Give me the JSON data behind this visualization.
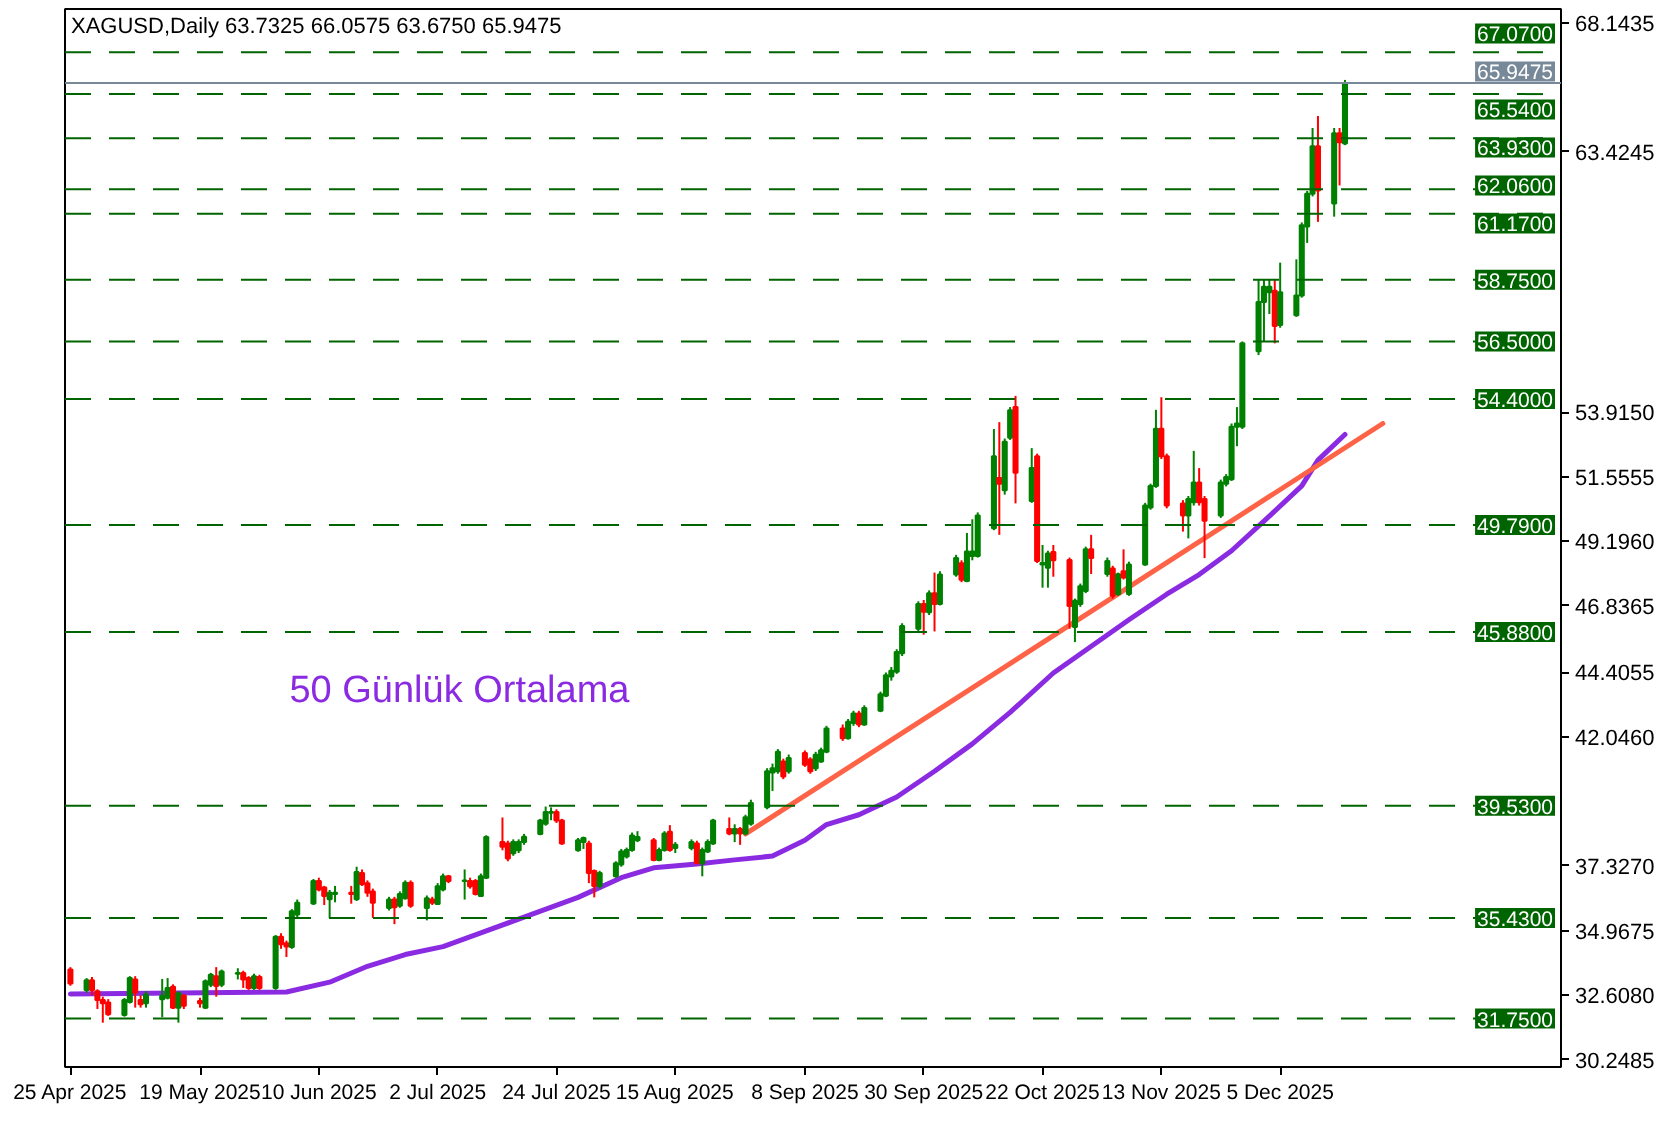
{
  "chart_data": {
    "type": "candlestick",
    "title": "XAGUSD,Daily 63.7325 66.0575 63.6750 65.9475",
    "x": [
      "2025-04-25",
      "2025-04-28",
      "2025-04-29",
      "2025-04-30",
      "2025-05-01",
      "2025-05-02",
      "2025-05-05",
      "2025-05-06",
      "2025-05-07",
      "2025-05-08",
      "2025-05-09",
      "2025-05-12",
      "2025-05-13",
      "2025-05-14",
      "2025-05-15",
      "2025-05-16",
      "2025-05-19",
      "2025-05-20",
      "2025-05-21",
      "2025-05-22",
      "2025-05-23",
      "2025-05-26",
      "2025-05-27",
      "2025-05-28",
      "2025-05-29",
      "2025-05-30",
      "2025-06-02",
      "2025-06-03",
      "2025-06-04",
      "2025-06-05",
      "2025-06-06",
      "2025-06-09",
      "2025-06-10",
      "2025-06-11",
      "2025-06-12",
      "2025-06-13",
      "2025-06-16",
      "2025-06-17",
      "2025-06-18",
      "2025-06-19",
      "2025-06-20",
      "2025-06-23",
      "2025-06-24",
      "2025-06-25",
      "2025-06-26",
      "2025-06-27",
      "2025-06-30",
      "2025-07-01",
      "2025-07-02",
      "2025-07-03",
      "2025-07-04",
      "2025-07-07",
      "2025-07-08",
      "2025-07-09",
      "2025-07-10",
      "2025-07-11",
      "2025-07-14",
      "2025-07-15",
      "2025-07-16",
      "2025-07-17",
      "2025-07-18",
      "2025-07-21",
      "2025-07-22",
      "2025-07-23",
      "2025-07-24",
      "2025-07-25",
      "2025-07-28",
      "2025-07-29",
      "2025-07-30",
      "2025-07-31",
      "2025-08-01",
      "2025-08-04",
      "2025-08-05",
      "2025-08-06",
      "2025-08-07",
      "2025-08-08",
      "2025-08-11",
      "2025-08-12",
      "2025-08-13",
      "2025-08-14",
      "2025-08-15",
      "2025-08-18",
      "2025-08-19",
      "2025-08-20",
      "2025-08-21",
      "2025-08-22",
      "2025-08-25",
      "2025-08-26",
      "2025-08-27",
      "2025-08-28",
      "2025-08-29",
      "2025-09-01",
      "2025-09-02",
      "2025-09-03",
      "2025-09-04",
      "2025-09-05",
      "2025-09-08",
      "2025-09-09",
      "2025-09-10",
      "2025-09-11",
      "2025-09-12",
      "2025-09-15",
      "2025-09-16",
      "2025-09-17",
      "2025-09-18",
      "2025-09-19",
      "2025-09-22",
      "2025-09-23",
      "2025-09-24",
      "2025-09-25",
      "2025-09-26",
      "2025-09-29",
      "2025-09-30",
      "2025-10-01",
      "2025-10-02",
      "2025-10-03",
      "2025-10-06",
      "2025-10-07",
      "2025-10-08",
      "2025-10-09",
      "2025-10-10",
      "2025-10-13",
      "2025-10-14",
      "2025-10-15",
      "2025-10-16",
      "2025-10-17",
      "2025-10-20",
      "2025-10-21",
      "2025-10-22",
      "2025-10-23",
      "2025-10-24",
      "2025-10-27",
      "2025-10-28",
      "2025-10-29",
      "2025-10-30",
      "2025-10-31",
      "2025-11-03",
      "2025-11-04",
      "2025-11-05",
      "2025-11-06",
      "2025-11-07",
      "2025-11-10",
      "2025-11-11",
      "2025-11-12",
      "2025-11-13",
      "2025-11-14",
      "2025-11-17",
      "2025-11-18",
      "2025-11-19",
      "2025-11-20",
      "2025-11-21",
      "2025-11-24",
      "2025-11-25",
      "2025-11-26",
      "2025-11-27",
      "2025-11-28",
      "2025-12-01",
      "2025-12-02",
      "2025-12-03",
      "2025-12-04",
      "2025-12-05",
      "2025-12-08",
      "2025-12-09",
      "2025-12-10",
      "2025-12-11",
      "2025-12-12",
      "2025-12-15",
      "2025-12-16",
      "2025-12-17"
    ],
    "ohlc": [
      [
        33.54,
        33.63,
        32.95,
        33.03
      ],
      [
        32.79,
        33.23,
        32.7,
        33.15
      ],
      [
        33.15,
        33.27,
        32.6,
        32.79
      ],
      [
        32.75,
        32.82,
        32.1,
        32.43
      ],
      [
        32.43,
        32.55,
        31.6,
        32.31
      ],
      [
        32.34,
        32.46,
        31.85,
        31.91
      ],
      [
        31.88,
        32.5,
        31.82,
        32.43
      ],
      [
        32.36,
        33.3,
        32.3,
        33.23
      ],
      [
        33.18,
        33.3,
        32.15,
        32.7
      ],
      [
        32.43,
        32.6,
        32.15,
        32.27
      ],
      [
        32.31,
        32.75,
        32.15,
        32.63
      ],
      [
        32.46,
        33.2,
        31.8,
        32.58
      ],
      [
        32.51,
        33.23,
        32.45,
        32.87
      ],
      [
        32.91,
        33.0,
        32.1,
        32.15
      ],
      [
        32.15,
        32.75,
        31.6,
        32.68
      ],
      [
        32.58,
        32.65,
        32.1,
        32.22
      ],
      [
        32.39,
        32.51,
        32.15,
        32.31
      ],
      [
        32.15,
        33.18,
        32.1,
        33.11
      ],
      [
        32.99,
        33.42,
        32.9,
        33.35
      ],
      [
        33.3,
        33.63,
        32.55,
        32.94
      ],
      [
        32.99,
        33.54,
        32.9,
        33.47
      ],
      [
        33.39,
        33.59,
        33.18,
        33.42
      ],
      [
        33.42,
        33.5,
        32.87,
        33.18
      ],
      [
        33.23,
        33.3,
        32.8,
        32.87
      ],
      [
        32.87,
        33.39,
        32.8,
        33.3
      ],
      [
        33.27,
        33.35,
        32.8,
        32.87
      ],
      [
        32.87,
        34.8,
        32.8,
        34.74
      ],
      [
        34.74,
        34.87,
        34.3,
        34.47
      ],
      [
        34.5,
        34.6,
        34.0,
        34.38
      ],
      [
        34.37,
        35.75,
        34.3,
        35.67
      ],
      [
        35.55,
        36.1,
        35.45,
        35.98
      ],
      [
        35.96,
        36.85,
        35.9,
        36.78
      ],
      [
        36.78,
        36.9,
        36.4,
        36.47
      ],
      [
        36.54,
        36.6,
        35.9,
        36.23
      ],
      [
        36.11,
        36.45,
        35.43,
        36.35
      ],
      [
        36.3,
        36.6,
        36.0,
        36.35
      ],
      [
        36.35,
        36.6,
        35.95,
        36.3
      ],
      [
        36.11,
        37.3,
        36.05,
        37.11
      ],
      [
        37.07,
        37.2,
        36.6,
        36.66
      ],
      [
        36.7,
        36.8,
        36.2,
        36.35
      ],
      [
        36.39,
        36.5,
        35.43,
        35.98
      ],
      [
        35.79,
        36.2,
        35.7,
        36.1
      ],
      [
        36.1,
        36.2,
        35.2,
        35.82
      ],
      [
        35.87,
        36.4,
        35.8,
        36.3
      ],
      [
        36.15,
        36.8,
        36.1,
        36.71
      ],
      [
        36.71,
        36.8,
        35.8,
        35.87
      ],
      [
        35.79,
        36.25,
        35.34,
        36.15
      ],
      [
        36.1,
        36.2,
        35.9,
        35.98
      ],
      [
        35.94,
        36.7,
        35.9,
        36.59
      ],
      [
        36.47,
        37.05,
        36.4,
        36.95
      ],
      [
        36.95,
        37.0,
        36.7,
        36.78
      ],
      [
        36.78,
        37.2,
        36.1,
        36.8
      ],
      [
        36.78,
        36.9,
        36.5,
        36.59
      ],
      [
        36.78,
        36.85,
        36.25,
        36.3
      ],
      [
        36.23,
        37.05,
        36.2,
        36.95
      ],
      [
        36.9,
        38.45,
        36.85,
        38.39
      ],
      [
        38.2,
        39.1,
        37.9,
        38.03
      ],
      [
        38.15,
        38.25,
        37.5,
        37.6
      ],
      [
        37.79,
        38.3,
        37.7,
        38.2
      ],
      [
        37.9,
        38.3,
        37.8,
        38.2
      ],
      [
        38.2,
        38.5,
        38.1,
        38.4
      ],
      [
        38.5,
        39.05,
        38.45,
        38.99
      ],
      [
        38.87,
        39.5,
        38.8,
        39.3
      ],
      [
        39.27,
        39.47,
        39.0,
        39.3
      ],
      [
        39.3,
        39.4,
        38.9,
        38.99
      ],
      [
        38.99,
        39.05,
        38.1,
        38.15
      ],
      [
        37.9,
        38.35,
        37.85,
        38.27
      ],
      [
        38.2,
        38.4,
        37.95,
        38.35
      ],
      [
        38.15,
        38.25,
        36.7,
        37.07
      ],
      [
        37.14,
        37.2,
        36.18,
        36.6
      ],
      [
        36.6,
        37.15,
        36.5,
        37.07
      ],
      [
        36.95,
        37.5,
        36.9,
        37.43
      ],
      [
        37.38,
        37.95,
        37.3,
        37.86
      ],
      [
        37.67,
        38.0,
        37.6,
        37.91
      ],
      [
        37.91,
        38.55,
        37.85,
        38.44
      ],
      [
        38.27,
        38.6,
        38.2,
        38.39
      ],
      [
        38.27,
        38.35,
        37.5,
        37.55
      ],
      [
        37.55,
        38.0,
        37.5,
        37.91
      ],
      [
        37.91,
        38.6,
        37.85,
        38.51
      ],
      [
        38.58,
        38.82,
        37.85,
        37.91
      ],
      [
        37.98,
        38.2,
        37.8,
        38.1
      ],
      [
        37.98,
        38.3,
        37.9,
        38.2
      ],
      [
        38.15,
        38.25,
        37.4,
        37.43
      ],
      [
        37.43,
        38.0,
        36.95,
        37.91
      ],
      [
        37.86,
        38.3,
        37.8,
        38.2
      ],
      [
        38.15,
        39.05,
        38.1,
        38.99
      ],
      [
        38.68,
        39.1,
        38.45,
        38.51
      ],
      [
        38.51,
        38.85,
        38.2,
        38.68
      ],
      [
        38.68,
        38.75,
        38.1,
        38.51
      ],
      [
        38.51,
        39.2,
        38.45,
        39.11
      ],
      [
        38.87,
        39.75,
        38.8,
        39.63
      ],
      [
        39.47,
        40.9,
        39.4,
        40.79
      ],
      [
        40.74,
        41.07,
        40.07,
        40.9
      ],
      [
        40.79,
        41.6,
        40.7,
        41.5
      ],
      [
        41.15,
        41.25,
        40.5,
        40.6
      ],
      [
        40.79,
        41.4,
        40.7,
        41.27
      ],
      [
        41.46,
        41.55,
        40.95,
        41.03
      ],
      [
        41.22,
        41.3,
        40.7,
        40.79
      ],
      [
        40.9,
        41.5,
        40.8,
        41.39
      ],
      [
        41.15,
        41.65,
        41.1,
        41.56
      ],
      [
        41.5,
        42.45,
        41.45,
        42.35
      ],
      [
        42.35,
        42.5,
        41.9,
        42.0
      ],
      [
        42.0,
        42.7,
        41.95,
        42.6
      ],
      [
        42.55,
        43.0,
        42.45,
        42.9
      ],
      [
        42.9,
        43.0,
        42.4,
        42.5
      ],
      [
        42.5,
        43.2,
        42.45,
        43.1
      ],
      [
        43.0,
        43.7,
        42.95,
        43.6
      ],
      [
        43.55,
        44.4,
        43.5,
        44.3
      ],
      [
        44.25,
        44.6,
        44.1,
        44.46
      ],
      [
        44.43,
        45.25,
        44.35,
        45.15
      ],
      [
        45.1,
        46.2,
        45.0,
        46.1
      ],
      [
        46.0,
        47.0,
        45.9,
        46.9
      ],
      [
        46.9,
        47.05,
        45.78,
        46.62
      ],
      [
        46.6,
        47.4,
        46.5,
        47.3
      ],
      [
        47.3,
        48.05,
        45.9,
        46.9
      ],
      [
        46.9,
        48.1,
        46.85,
        47.98
      ],
      [
        47.98,
        48.7,
        47.9,
        48.58
      ],
      [
        48.39,
        48.5,
        47.7,
        47.79
      ],
      [
        47.74,
        49.5,
        47.7,
        48.82
      ],
      [
        48.66,
        50.0,
        48.5,
        48.82
      ],
      [
        48.66,
        50.25,
        48.6,
        50.14
      ],
      [
        49.67,
        53.3,
        49.6,
        52.3
      ],
      [
        51.51,
        53.55,
        49.43,
        51.3
      ],
      [
        51.06,
        52.95,
        50.9,
        52.83
      ],
      [
        52.98,
        54.1,
        52.9,
        53.98
      ],
      [
        54.1,
        54.51,
        50.58,
        51.7
      ],
      [
        50.67,
        52.6,
        50.6,
        51.87
      ],
      [
        52.3,
        52.4,
        48.4,
        48.47
      ],
      [
        48.35,
        49.06,
        47.5,
        48.4
      ],
      [
        48.23,
        48.85,
        47.5,
        48.75
      ],
      [
        48.8,
        49.06,
        47.9,
        48.5
      ],
      [
        48.51,
        48.6,
        46.0,
        46.83
      ],
      [
        46.06,
        47.1,
        45.51,
        47.02
      ],
      [
        46.9,
        47.65,
        46.8,
        47.55
      ],
      [
        47.38,
        49.0,
        47.3,
        48.9
      ],
      [
        48.9,
        49.43,
        48.0,
        48.58
      ],
      [
        48.0,
        48.6,
        47.9,
        48.47
      ],
      [
        48.2,
        48.3,
        47.1,
        47.2
      ],
      [
        47.27,
        48.05,
        47.2,
        47.99
      ],
      [
        48.1,
        48.9,
        47.8,
        47.87
      ],
      [
        47.27,
        48.45,
        47.2,
        48.35
      ],
      [
        48.35,
        50.6,
        48.3,
        50.5
      ],
      [
        50.43,
        51.3,
        50.35,
        51.22
      ],
      [
        51.22,
        54.0,
        51.15,
        53.31
      ],
      [
        53.31,
        54.46,
        52.2,
        52.3
      ],
      [
        52.3,
        52.4,
        50.4,
        50.5
      ],
      [
        50.58,
        50.7,
        49.55,
        50.14
      ],
      [
        50.14,
        50.85,
        49.3,
        50.74
      ],
      [
        50.62,
        52.5,
        50.5,
        51.34
      ],
      [
        51.34,
        51.87,
        50.5,
        50.62
      ],
      [
        50.74,
        50.85,
        48.58,
        49.95
      ],
      [
        50.14,
        51.45,
        50.05,
        51.34
      ],
      [
        51.3,
        51.65,
        51.2,
        51.54
      ],
      [
        51.46,
        53.5,
        51.4,
        53.38
      ],
      [
        53.38,
        54.1,
        52.67,
        53.5
      ],
      [
        53.38,
        56.5,
        53.3,
        56.43
      ],
      [
        56.14,
        58.76,
        56.0,
        57.94
      ],
      [
        57.94,
        58.76,
        56.5,
        58.5
      ],
      [
        58.3,
        58.76,
        57.5,
        58.5
      ],
      [
        58.35,
        58.76,
        56.43,
        57.06
      ],
      [
        57.1,
        59.38,
        57.0,
        58.3
      ],
      [
        57.46,
        59.5,
        57.4,
        58.18
      ],
      [
        58.18,
        60.85,
        58.1,
        60.75
      ],
      [
        60.7,
        62.0,
        60.1,
        61.9
      ],
      [
        61.9,
        64.3,
        61.8,
        63.63
      ],
      [
        63.63,
        64.74,
        60.87,
        62.02
      ],
      [
        61.54,
        64.3,
        61.06,
        64.11
      ],
      [
        64.11,
        64.3,
        62.2,
        63.78
      ],
      [
        63.7325,
        66.0575,
        63.675,
        65.9475
      ]
    ],
    "colors": [
      "#ff0000",
      "#008000",
      "#ff0000",
      "#ff0000",
      "#ff0000",
      "#ff0000",
      "#008000",
      "#008000",
      "#ff0000",
      "#ff0000",
      "#008000",
      "#008000",
      "#008000",
      "#ff0000",
      "#008000",
      "#ff0000",
      "#ff0000",
      "#008000",
      "#008000",
      "#ff0000",
      "#008000",
      "#008000",
      "#ff0000",
      "#ff0000",
      "#008000",
      "#ff0000",
      "#008000",
      "#ff0000",
      "#ff0000",
      "#008000",
      "#008000",
      "#008000",
      "#ff0000",
      "#ff0000",
      "#008000",
      "#008000",
      "#ff0000",
      "#008000",
      "#ff0000",
      "#ff0000",
      "#ff0000",
      "#008000",
      "#ff0000",
      "#008000",
      "#008000",
      "#ff0000",
      "#008000",
      "#ff0000",
      "#008000",
      "#008000",
      "#ff0000",
      "#008000",
      "#ff0000",
      "#ff0000",
      "#008000",
      "#008000",
      "#ff0000",
      "#ff0000",
      "#008000",
      "#008000",
      "#008000",
      "#008000",
      "#008000",
      "#008000",
      "#ff0000",
      "#ff0000",
      "#008000",
      "#008000",
      "#ff0000",
      "#ff0000",
      "#008000",
      "#008000",
      "#008000",
      "#008000",
      "#008000",
      "#008000",
      "#ff0000",
      "#008000",
      "#008000",
      "#ff0000",
      "#008000",
      "#008000",
      "#ff0000",
      "#008000",
      "#008000",
      "#008000",
      "#ff0000",
      "#008000",
      "#ff0000",
      "#008000",
      "#008000",
      "#008000",
      "#008000",
      "#008000",
      "#ff0000",
      "#008000",
      "#ff0000",
      "#ff0000",
      "#008000",
      "#008000",
      "#008000",
      "#ff0000",
      "#008000",
      "#008000",
      "#ff0000",
      "#008000",
      "#008000",
      "#008000",
      "#008000",
      "#008000",
      "#008000",
      "#008000",
      "#ff0000",
      "#008000",
      "#ff0000",
      "#008000",
      "#008000",
      "#ff0000",
      "#008000",
      "#008000",
      "#008000",
      "#008000",
      "#ff0000",
      "#008000",
      "#008000",
      "#ff0000",
      "#008000",
      "#ff0000",
      "#008000",
      "#008000",
      "#ff0000",
      "#ff0000",
      "#008000",
      "#008000",
      "#008000",
      "#ff0000",
      "#008000",
      "#ff0000",
      "#008000",
      "#ff0000",
      "#008000",
      "#008000",
      "#008000",
      "#008000",
      "#ff0000",
      "#ff0000",
      "#ff0000",
      "#008000",
      "#008000",
      "#ff0000",
      "#ff0000",
      "#008000",
      "#008000",
      "#008000",
      "#008000",
      "#008000",
      "#008000",
      "#008000",
      "#008000",
      "#ff0000",
      "#008000",
      "#008000",
      "#008000",
      "#008000",
      "#008000",
      "#ff0000",
      "#008000",
      "#ff0000",
      "#008000"
    ],
    "series": [
      {
        "name": "50 Günlük Ortalama",
        "type": "line",
        "color": "#8a2be2",
        "x": [
          "2025-04-25",
          "2025-06-04",
          "2025-06-12",
          "2025-06-19",
          "2025-06-26",
          "2025-07-03",
          "2025-07-10",
          "2025-07-18",
          "2025-07-28",
          "2025-08-05",
          "2025-08-11",
          "2025-08-19",
          "2025-08-26",
          "2025-09-02",
          "2025-09-08",
          "2025-09-12",
          "2025-09-18",
          "2025-09-25",
          "2025-10-02",
          "2025-10-09",
          "2025-10-16",
          "2025-10-24",
          "2025-11-07",
          "2025-11-14",
          "2025-11-20",
          "2025-11-26",
          "2025-12-02",
          "2025-12-09",
          "2025-12-12",
          "2025-12-17"
        ],
        "values": [
          32.65,
          32.72,
          33.08,
          33.66,
          34.09,
          34.38,
          34.88,
          35.46,
          36.18,
          36.9,
          37.26,
          37.4,
          37.55,
          37.69,
          38.27,
          38.84,
          39.2,
          39.85,
          40.79,
          41.79,
          42.94,
          44.38,
          46.33,
          47.26,
          47.98,
          48.85,
          49.93,
          51.22,
          52.16,
          53.1
        ]
      },
      {
        "type": "line",
        "color": "#ff6347",
        "x": [
          "2025-08-28",
          "2025-12-24"
        ],
        "values": [
          38.5,
          53.5
        ]
      }
    ],
    "xlim": [
      "2025-04-24",
      "2026-01-26"
    ],
    "ylim": [
      29.98,
      68.65
    ],
    "xticks": [
      {
        "value": "2025-04-25",
        "label": "25 Apr 2025"
      },
      {
        "value": "2025-05-19",
        "label": "19 May 2025"
      },
      {
        "value": "2025-06-10",
        "label": "10 Jun 2025"
      },
      {
        "value": "2025-07-02",
        "label": "2 Jul 2025"
      },
      {
        "value": "2025-07-24",
        "label": "24 Jul 2025"
      },
      {
        "value": "2025-08-15",
        "label": "15 Aug 2025"
      },
      {
        "value": "2025-09-08",
        "label": "8 Sep 2025"
      },
      {
        "value": "2025-09-30",
        "label": "30 Sep 2025"
      },
      {
        "value": "2025-10-22",
        "label": "22 Oct 2025"
      },
      {
        "value": "2025-11-13",
        "label": "13 Nov 2025"
      },
      {
        "value": "2025-12-05",
        "label": "5 Dec 2025"
      }
    ],
    "yticks": [
      30.2485,
      {
        "value": 32.608,
        "label": "32.6080"
      },
      34.9675,
      {
        "value": 37.327,
        "label": "37.3270"
      },
      {
        "value": 42.046,
        "label": "42.0460"
      },
      44.4055,
      46.8365,
      {
        "value": 49.196,
        "label": "49.1960"
      },
      51.5555,
      {
        "value": 53.915,
        "label": "53.9150"
      },
      63.4245,
      68.1435
    ],
    "ref_lines": [
      {
        "axis": "y",
        "value": 67.07,
        "label": "67.0700",
        "color": "#006400",
        "line_style": "dashed"
      },
      {
        "axis": "y",
        "value": 65.9475,
        "label": "65.9475",
        "color": "#778899",
        "line_style": "solid"
      },
      {
        "axis": "y",
        "value": 65.54,
        "label": "65.5400",
        "color": "#006400",
        "line_style": "dashed"
      },
      {
        "axis": "y",
        "value": 63.93,
        "label": "63.9300",
        "color": "#006400",
        "line_style": "dashed"
      },
      {
        "axis": "y",
        "value": 62.06,
        "label": "62.0600",
        "color": "#006400",
        "line_style": "dashed"
      },
      {
        "axis": "y",
        "value": 61.17,
        "label": "61.1700",
        "color": "#006400",
        "line_style": "dashed"
      },
      {
        "axis": "y",
        "value": 58.75,
        "label": "58.7500",
        "color": "#006400",
        "line_style": "dashed"
      },
      {
        "axis": "y",
        "value": 56.5,
        "label": "56.5000",
        "color": "#006400",
        "line_style": "dashed"
      },
      {
        "axis": "y",
        "value": 54.4,
        "label": "54.4000",
        "color": "#006400",
        "line_style": "dashed"
      },
      {
        "axis": "y",
        "value": 49.79,
        "label": "49.7900",
        "color": "#006400",
        "line_style": "dashed"
      },
      {
        "axis": "y",
        "value": 45.88,
        "label": "45.8800",
        "color": "#006400",
        "line_style": "dashed"
      },
      {
        "axis": "y",
        "value": 39.53,
        "label": "39.5300",
        "color": "#006400",
        "line_style": "dashed"
      },
      {
        "axis": "y",
        "value": 35.43,
        "label": "35.4300",
        "color": "#006400",
        "line_style": "dashed"
      },
      {
        "axis": "y",
        "value": 31.75,
        "label": "31.7500",
        "color": "#006400",
        "line_style": "dashed"
      }
    ],
    "grid": false,
    "legend": false
  }
}
